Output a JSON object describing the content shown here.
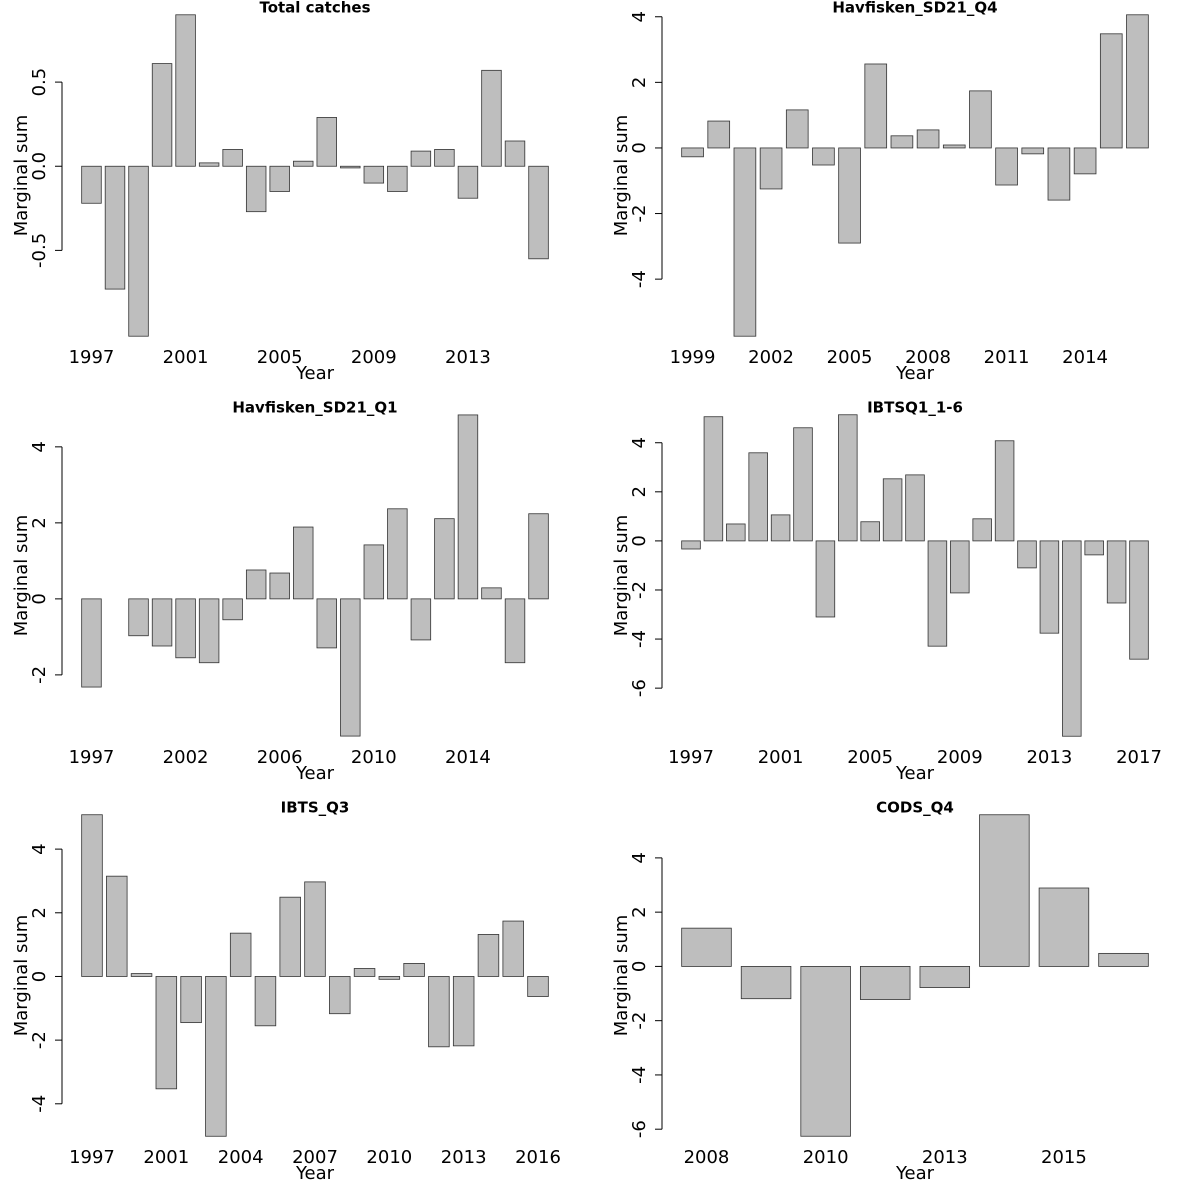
{
  "chart_data": [
    {
      "type": "bar",
      "title": "Total catches",
      "xlabel": "Year",
      "ylabel": "Marginal sum",
      "color": "#bebebe",
      "categories": [
        "1997",
        null,
        null,
        null,
        "2001",
        null,
        null,
        null,
        "2005",
        null,
        null,
        null,
        "2009",
        null,
        null,
        null,
        "2013",
        null,
        null,
        null
      ],
      "values": [
        -0.22,
        -0.73,
        -1.01,
        0.61,
        0.9,
        0.02,
        0.1,
        -0.27,
        -0.15,
        0.03,
        0.29,
        -0.01,
        -0.1,
        -0.15,
        0.09,
        0.1,
        -0.19,
        0.57,
        0.15,
        -0.55
      ],
      "ylim": [
        -1.086,
        0.976
      ],
      "yticks": [
        -0.5,
        {
          "value": 0,
          "label": "0.0"
        },
        0.5
      ]
    },
    {
      "type": "bar",
      "title": "Havfisken_SD21_Q4",
      "xlabel": "Year",
      "ylabel": "Marginal sum",
      "color": "#bebebe",
      "categories": [
        "1999",
        null,
        null,
        "2002",
        null,
        null,
        "2005",
        null,
        null,
        "2008",
        null,
        null,
        "2011",
        null,
        null,
        "2014",
        null,
        null
      ],
      "values": [
        -0.27,
        0.82,
        -5.74,
        -1.25,
        1.16,
        -0.52,
        -2.9,
        2.56,
        0.37,
        0.55,
        0.09,
        1.74,
        -1.13,
        -0.18,
        -1.59,
        -0.79,
        3.48,
        4.06
      ],
      "ylim": [
        -6.13,
        4.45
      ],
      "yticks": [
        -4,
        -2,
        0,
        2,
        4
      ]
    },
    {
      "type": "bar",
      "title": "Havfisken_SD21_Q1",
      "xlabel": "Year",
      "ylabel": "Marginal sum",
      "color": "#bebebe",
      "categories": [
        "1997",
        null,
        null,
        null,
        "2002",
        null,
        null,
        null,
        "2006",
        null,
        null,
        null,
        "2010",
        null,
        null,
        null,
        "2014",
        null,
        null,
        null
      ],
      "values": [
        -2.32,
        0.0,
        -0.97,
        -1.24,
        -1.55,
        -1.68,
        -0.55,
        0.76,
        0.68,
        1.89,
        -1.29,
        -3.61,
        1.42,
        2.37,
        -1.08,
        2.11,
        4.84,
        0.29,
        -1.68,
        2.24
      ],
      "ylim": [
        -3.95,
        5.18
      ],
      "yticks": [
        -2,
        0,
        2,
        4
      ]
    },
    {
      "type": "bar",
      "title": "IBTSQ1_1-6",
      "xlabel": "Year",
      "ylabel": "Marginal sum",
      "color": "#bebebe",
      "categories": [
        "1997",
        null,
        null,
        null,
        "2001",
        null,
        null,
        null,
        "2005",
        null,
        null,
        null,
        "2009",
        null,
        null,
        null,
        "2013",
        null,
        null,
        null,
        "2017"
      ],
      "values": [
        -0.33,
        5.06,
        0.69,
        3.59,
        1.06,
        4.61,
        -3.1,
        5.14,
        0.78,
        2.53,
        2.69,
        -4.29,
        -2.12,
        0.9,
        4.08,
        -1.1,
        -3.76,
        -7.96,
        -0.57,
        -2.53,
        -4.82
      ],
      "ylim": [
        -8.48,
        5.66
      ],
      "yticks": [
        -6,
        -4,
        -2,
        0,
        2,
        4
      ]
    },
    {
      "type": "bar",
      "title": "IBTS_Q3",
      "xlabel": "Year",
      "ylabel": "Marginal sum",
      "color": "#bebebe",
      "categories": [
        "1997",
        null,
        null,
        "2001",
        null,
        null,
        "2004",
        null,
        null,
        "2007",
        null,
        null,
        "2010",
        null,
        null,
        "2013",
        null,
        null,
        "2016"
      ],
      "values": [
        5.08,
        3.15,
        0.09,
        -3.53,
        -1.45,
        -5.02,
        1.36,
        -1.55,
        2.49,
        2.97,
        -1.17,
        0.25,
        -0.09,
        0.41,
        -2.21,
        -2.18,
        1.32,
        1.74,
        -0.63
      ],
      "ylim": [
        -5.42,
        5.48
      ],
      "yticks": [
        -4,
        -2,
        0,
        2,
        4
      ]
    },
    {
      "type": "bar",
      "title": "CODS_Q4",
      "xlabel": "Year",
      "ylabel": "Marginal sum",
      "color": "#bebebe",
      "categories": [
        "2008",
        null,
        "2010",
        null,
        "2013",
        null,
        "2015",
        null
      ],
      "values": [
        1.41,
        -1.19,
        -6.26,
        -1.22,
        -0.78,
        5.59,
        2.89,
        0.48
      ],
      "ylim": [
        -6.73,
        6.06
      ],
      "yticks": [
        -6,
        -4,
        -2,
        0,
        2,
        4
      ]
    }
  ]
}
